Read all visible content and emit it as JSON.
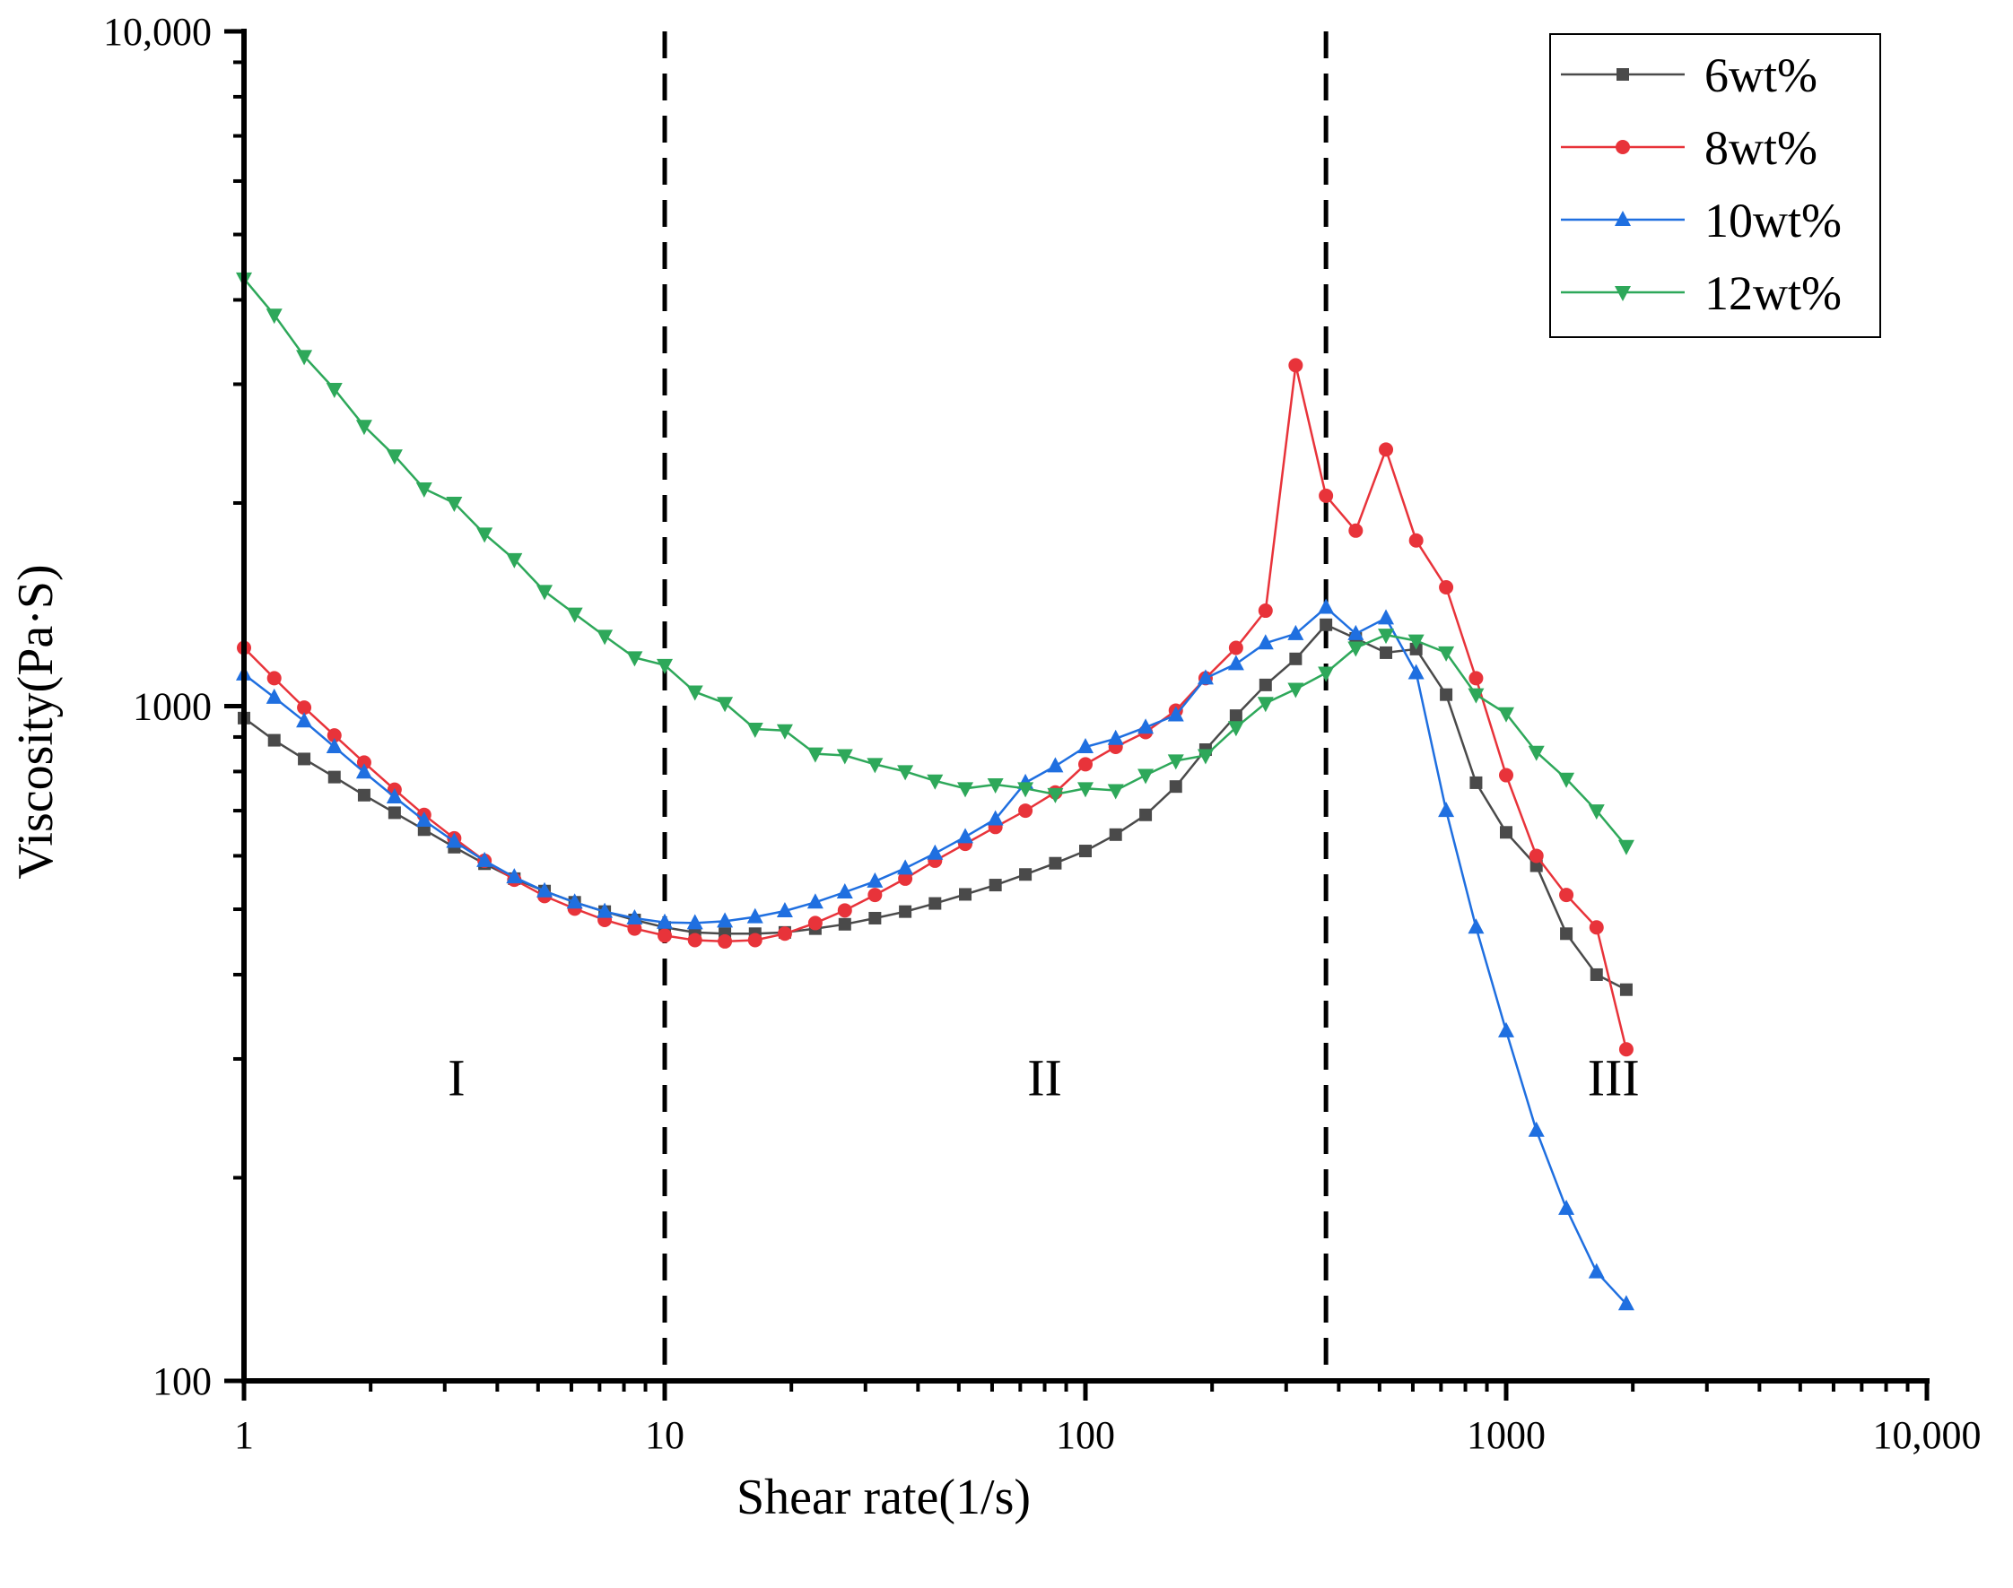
{
  "chart_data": {
    "type": "line",
    "title": "",
    "xlabel": "Shear rate(1/s)",
    "ylabel": "Viscosity(Pa·S)",
    "xscale": "log",
    "yscale": "log",
    "xlim": [
      1,
      10000
    ],
    "ylim": [
      100,
      10000
    ],
    "x_ticks": [
      {
        "value": 1,
        "label": "1"
      },
      {
        "value": 10,
        "label": "10"
      },
      {
        "value": 100,
        "label": "100"
      },
      {
        "value": 1000,
        "label": "1000"
      },
      {
        "value": 10000,
        "label": "10,000"
      }
    ],
    "y_ticks": [
      {
        "value": 100,
        "label": "100"
      },
      {
        "value": 1000,
        "label": "1000"
      },
      {
        "value": 10000,
        "label": "10,000"
      }
    ],
    "grid": false,
    "legend_position": "top-right",
    "boundaries": [
      10,
      373
    ],
    "regions": [
      {
        "label": "I",
        "x": 3.2,
        "y": 265
      },
      {
        "label": "II",
        "x": 80,
        "y": 265
      },
      {
        "label": "III",
        "x": 1800,
        "y": 265
      }
    ],
    "x": [
      1,
      1.18,
      1.39,
      1.64,
      1.93,
      2.28,
      2.68,
      3.16,
      3.73,
      4.39,
      5.18,
      6.11,
      7.2,
      8.48,
      10,
      11.8,
      13.9,
      16.4,
      19.3,
      22.8,
      26.8,
      31.6,
      37.3,
      43.9,
      51.8,
      61.1,
      72,
      84.8,
      100,
      118,
      139,
      164,
      193,
      228,
      268,
      316,
      373,
      439,
      518,
      611,
      720,
      848,
      1000,
      1180,
      1390,
      1640,
      1930
    ],
    "series": [
      {
        "name": "6wt%",
        "color": "#4a4a4a",
        "marker": "square",
        "values": [
          960,
          890,
          835,
          785,
          738,
          695,
          656,
          618,
          584,
          555,
          532,
          512,
          496,
          482,
          470,
          462,
          460,
          460,
          462,
          468,
          475,
          485,
          496,
          510,
          526,
          543,
          563,
          585,
          610,
          645,
          690,
          760,
          862,
          968,
          1075,
          1175,
          1320,
          1260,
          1200,
          1215,
          1040,
          770,
          650,
          580,
          460,
          400,
          380
        ]
      },
      {
        "name": "8wt%",
        "color": "#e8333a",
        "marker": "circle",
        "values": [
          1220,
          1100,
          995,
          905,
          825,
          752,
          690,
          637,
          590,
          553,
          523,
          501,
          482,
          468,
          457,
          450,
          448,
          450,
          460,
          477,
          498,
          525,
          555,
          590,
          625,
          662,
          700,
          745,
          820,
          870,
          915,
          985,
          1100,
          1220,
          1385,
          3200,
          2050,
          1820,
          2400,
          1760,
          1500,
          1100,
          790,
          600,
          525,
          470,
          310
        ]
      },
      {
        "name": "10wt%",
        "color": "#1f6fe0",
        "marker": "triangle-up",
        "values": [
          1115,
          1030,
          950,
          870,
          798,
          733,
          677,
          630,
          590,
          558,
          532,
          512,
          496,
          485,
          478,
          477,
          480,
          487,
          497,
          512,
          530,
          550,
          575,
          605,
          640,
          680,
          770,
          815,
          870,
          895,
          930,
          970,
          1100,
          1155,
          1240,
          1280,
          1400,
          1280,
          1350,
          1120,
          700,
          470,
          330,
          235,
          180,
          145,
          130
        ]
      },
      {
        "name": "12wt%",
        "color": "#2ea85a",
        "marker": "triangle-down",
        "values": [
          4300,
          3800,
          3300,
          2950,
          2600,
          2350,
          2100,
          2000,
          1800,
          1650,
          1480,
          1370,
          1270,
          1180,
          1150,
          1050,
          1010,
          925,
          920,
          850,
          845,
          820,
          800,
          775,
          755,
          765,
          755,
          740,
          755,
          750,
          790,
          830,
          845,
          930,
          1010,
          1060,
          1120,
          1220,
          1275,
          1250,
          1200,
          1040,
          975,
          855,
          780,
          700,
          620
        ]
      }
    ]
  }
}
